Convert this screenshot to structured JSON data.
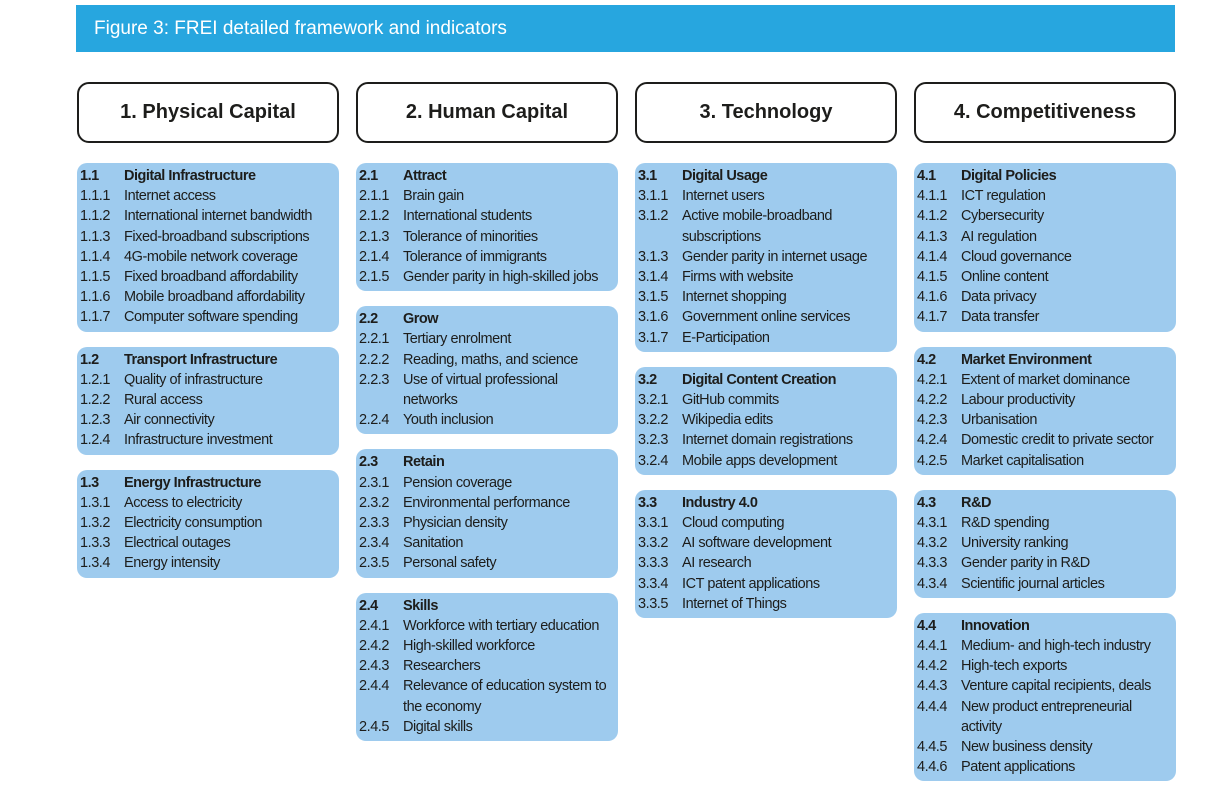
{
  "colors": {
    "accent": "#27a6df",
    "box": "#9ecbee"
  },
  "figure_title": "Figure 3: FREI detailed framework and indicators",
  "columns": [
    {
      "title": "1. Physical Capital",
      "groups": [
        {
          "num": "1.1",
          "title": "Digital Infrastructure",
          "items": [
            {
              "num": "1.1.1",
              "label": "Internet access"
            },
            {
              "num": "1.1.2",
              "label": "International internet bandwidth"
            },
            {
              "num": "1.1.3",
              "label": "Fixed-broadband subscriptions"
            },
            {
              "num": "1.1.4",
              "label": "4G-mobile network coverage"
            },
            {
              "num": "1.1.5",
              "label": "Fixed broadband affordability"
            },
            {
              "num": "1.1.6",
              "label": "Mobile broadband affordability"
            },
            {
              "num": "1.1.7",
              "label": "Computer software spending"
            }
          ]
        },
        {
          "num": "1.2",
          "title": "Transport Infrastructure",
          "items": [
            {
              "num": "1.2.1",
              "label": "Quality of infrastructure"
            },
            {
              "num": "1.2.2",
              "label": "Rural access"
            },
            {
              "num": "1.2.3",
              "label": "Air connectivity"
            },
            {
              "num": "1.2.4",
              "label": "Infrastructure investment"
            }
          ]
        },
        {
          "num": "1.3",
          "title": "Energy Infrastructure",
          "items": [
            {
              "num": "1.3.1",
              "label": "Access to electricity"
            },
            {
              "num": "1.3.2",
              "label": "Electricity consumption"
            },
            {
              "num": "1.3.3",
              "label": "Electrical outages"
            },
            {
              "num": "1.3.4",
              "label": "Energy intensity"
            }
          ]
        }
      ]
    },
    {
      "title": "2. Human Capital",
      "groups": [
        {
          "num": "2.1",
          "title": "Attract",
          "items": [
            {
              "num": "2.1.1",
              "label": "Brain gain"
            },
            {
              "num": "2.1.2",
              "label": "International students"
            },
            {
              "num": "2.1.3",
              "label": "Tolerance of minorities"
            },
            {
              "num": "2.1.4",
              "label": "Tolerance of immigrants"
            },
            {
              "num": "2.1.5",
              "label": "Gender parity in high-skilled jobs"
            }
          ]
        },
        {
          "num": "2.2",
          "title": "Grow",
          "items": [
            {
              "num": "2.2.1",
              "label": "Tertiary enrolment"
            },
            {
              "num": "2.2.2",
              "label": "Reading, maths, and science"
            },
            {
              "num": "2.2.3",
              "label": "Use of virtual professional networks"
            },
            {
              "num": "2.2.4",
              "label": "Youth inclusion"
            }
          ]
        },
        {
          "num": "2.3",
          "title": "Retain",
          "items": [
            {
              "num": "2.3.1",
              "label": "Pension coverage"
            },
            {
              "num": "2.3.2",
              "label": "Environmental performance"
            },
            {
              "num": "2.3.3",
              "label": "Physician density"
            },
            {
              "num": "2.3.4",
              "label": "Sanitation"
            },
            {
              "num": "2.3.5",
              "label": "Personal safety"
            }
          ]
        },
        {
          "num": "2.4",
          "title": "Skills",
          "items": [
            {
              "num": "2.4.1",
              "label": "Workforce with tertiary education"
            },
            {
              "num": "2.4.2",
              "label": "High-skilled workforce"
            },
            {
              "num": "2.4.3",
              "label": "Researchers"
            },
            {
              "num": "2.4.4",
              "label": "Relevance of education system to the economy"
            },
            {
              "num": "2.4.5",
              "label": "Digital skills"
            }
          ]
        }
      ]
    },
    {
      "title": "3. Technology",
      "groups": [
        {
          "num": "3.1",
          "title": "Digital Usage",
          "items": [
            {
              "num": "3.1.1",
              "label": "Internet users"
            },
            {
              "num": "3.1.2",
              "label": "Active mobile-broadband subscriptions"
            },
            {
              "num": "3.1.3",
              "label": "Gender parity in internet usage"
            },
            {
              "num": "3.1.4",
              "label": "Firms with website"
            },
            {
              "num": "3.1.5",
              "label": "Internet shopping"
            },
            {
              "num": "3.1.6",
              "label": "Government online services"
            },
            {
              "num": "3.1.7",
              "label": "E-Participation"
            }
          ]
        },
        {
          "num": "3.2",
          "title": "Digital Content Creation",
          "items": [
            {
              "num": "3.2.1",
              "label": "GitHub commits"
            },
            {
              "num": "3.2.2",
              "label": "Wikipedia edits"
            },
            {
              "num": "3.2.3",
              "label": "Internet domain registrations"
            },
            {
              "num": "3.2.4",
              "label": "Mobile apps development"
            }
          ]
        },
        {
          "num": "3.3",
          "title": "Industry 4.0",
          "items": [
            {
              "num": "3.3.1",
              "label": "Cloud computing"
            },
            {
              "num": "3.3.2",
              "label": "AI software development"
            },
            {
              "num": "3.3.3",
              "label": "AI research"
            },
            {
              "num": "3.3.4",
              "label": "ICT patent applications"
            },
            {
              "num": "3.3.5",
              "label": "Internet of Things"
            }
          ]
        }
      ]
    },
    {
      "title": "4. Competitiveness",
      "groups": [
        {
          "num": "4.1",
          "title": "Digital Policies",
          "items": [
            {
              "num": "4.1.1",
              "label": "ICT regulation"
            },
            {
              "num": "4.1.2",
              "label": "Cybersecurity"
            },
            {
              "num": "4.1.3",
              "label": "AI regulation"
            },
            {
              "num": "4.1.4",
              "label": "Cloud governance"
            },
            {
              "num": "4.1.5",
              "label": "Online content"
            },
            {
              "num": "4.1.6",
              "label": "Data privacy"
            },
            {
              "num": "4.1.7",
              "label": "Data transfer"
            }
          ]
        },
        {
          "num": "4.2",
          "title": "Market Environment",
          "items": [
            {
              "num": "4.2.1",
              "label": "Extent of market dominance"
            },
            {
              "num": "4.2.2",
              "label": "Labour productivity"
            },
            {
              "num": "4.2.3",
              "label": "Urbanisation"
            },
            {
              "num": "4.2.4",
              "label": "Domestic credit to private sector"
            },
            {
              "num": "4.2.5",
              "label": "Market capitalisation"
            }
          ]
        },
        {
          "num": "4.3",
          "title": "R&D",
          "items": [
            {
              "num": "4.3.1",
              "label": "R&D spending"
            },
            {
              "num": "4.3.2",
              "label": "University ranking"
            },
            {
              "num": "4.3.3",
              "label": "Gender parity in R&D"
            },
            {
              "num": "4.3.4",
              "label": "Scientific journal articles"
            }
          ]
        },
        {
          "num": "4.4",
          "title": "Innovation",
          "items": [
            {
              "num": "4.4.1",
              "label": "Medium- and high-tech industry"
            },
            {
              "num": "4.4.2",
              "label": "High-tech exports"
            },
            {
              "num": "4.4.3",
              "label": "Venture capital recipients, deals"
            },
            {
              "num": "4.4.4",
              "label": "New product entrepreneurial activity"
            },
            {
              "num": "4.4.5",
              "label": "New business density"
            },
            {
              "num": "4.4.6",
              "label": "Patent applications"
            }
          ]
        }
      ]
    }
  ]
}
